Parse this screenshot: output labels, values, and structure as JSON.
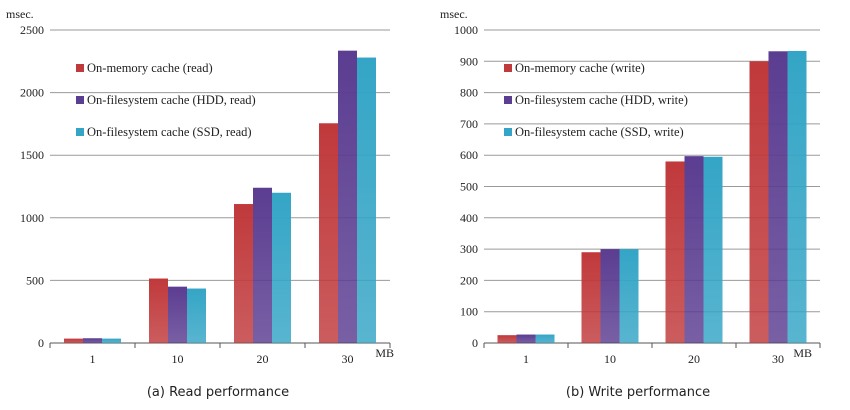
{
  "colors": {
    "memory": "#c0393b",
    "hdd": "#5b3d91",
    "ssd": "#34a5c6",
    "grid": "#9a9a9a",
    "text": "#222222"
  },
  "chart_data": [
    {
      "type": "bar",
      "caption": "(a) Read performance",
      "ylabel": "msec.",
      "xlabel_unit": "MB",
      "categories": [
        "1",
        "10",
        "20",
        "30"
      ],
      "ylim": [
        0,
        2500
      ],
      "yticks": [
        0,
        500,
        1000,
        1500,
        2000,
        2500
      ],
      "grid": true,
      "legend_position": "top-left",
      "series": [
        {
          "name": "On-memory cache (read)",
          "color_key": "memory",
          "values": [
            35,
            515,
            1110,
            1755
          ]
        },
        {
          "name": "On-filesystem cache (HDD, read)",
          "color_key": "hdd",
          "values": [
            38,
            450,
            1240,
            2335
          ]
        },
        {
          "name": "On-filesystem cache (SSD, read)",
          "color_key": "ssd",
          "values": [
            35,
            435,
            1200,
            2280
          ]
        }
      ]
    },
    {
      "type": "bar",
      "caption": "(b) Write performance",
      "ylabel": "msec.",
      "xlabel_unit": "MB",
      "categories": [
        "1",
        "10",
        "20",
        "30"
      ],
      "ylim": [
        0,
        1000
      ],
      "yticks": [
        0,
        100,
        200,
        300,
        400,
        500,
        600,
        700,
        800,
        900,
        1000
      ],
      "grid": true,
      "legend_position": "top-left",
      "series": [
        {
          "name": "On-memory cache (write)",
          "color_key": "memory",
          "values": [
            25,
            290,
            580,
            900
          ]
        },
        {
          "name": "On-filesystem cache (HDD, write)",
          "color_key": "hdd",
          "values": [
            27,
            300,
            597,
            932
          ]
        },
        {
          "name": "On-filesystem cache (SSD, write)",
          "color_key": "ssd",
          "values": [
            27,
            300,
            595,
            933
          ]
        }
      ]
    }
  ]
}
